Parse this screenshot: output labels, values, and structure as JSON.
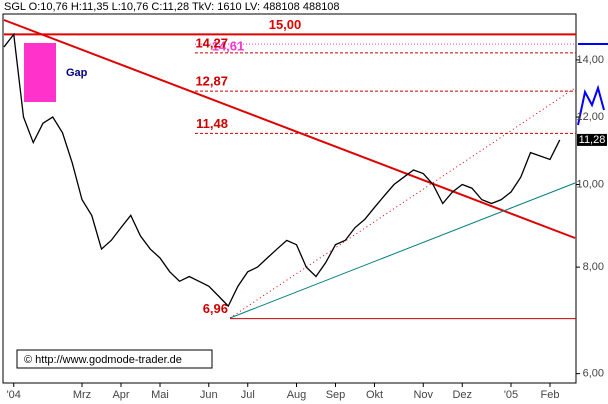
{
  "chart_data": {
    "type": "line",
    "header": "SGL O:10,76 H:11,35 L:10,76 C:11,28 TkV: 1610 LV: 488108 488108",
    "categories": [
      null,
      "'04",
      null,
      null,
      null,
      null,
      null,
      null,
      "Mrz",
      null,
      null,
      null,
      "Apr",
      null,
      null,
      null,
      "Mai",
      null,
      null,
      null,
      null,
      "Jun",
      null,
      null,
      null,
      "Jul",
      null,
      null,
      null,
      null,
      "Aug",
      null,
      null,
      null,
      "Sep",
      null,
      null,
      null,
      "Okt",
      null,
      null,
      null,
      null,
      "Nov",
      null,
      null,
      null,
      "Dez",
      null,
      null,
      null,
      null,
      "'05",
      null,
      null,
      null,
      "Feb",
      null
    ],
    "series": [
      {
        "color": "#000000",
        "values": [
          14.5,
          15.0,
          12.0,
          11.2,
          11.8,
          12.0,
          11.5,
          10.6,
          9.6,
          9.2,
          8.4,
          8.6,
          8.9,
          9.2,
          8.7,
          8.4,
          8.2,
          7.9,
          7.7,
          7.8,
          7.7,
          7.6,
          7.4,
          7.2,
          7.6,
          7.9,
          8.0,
          8.2,
          8.4,
          8.6,
          8.5,
          8.0,
          7.8,
          8.1,
          8.5,
          8.6,
          8.9,
          9.1,
          9.4,
          9.7,
          10.0,
          10.2,
          10.4,
          10.3,
          10.0,
          9.5,
          9.8,
          10.0,
          9.9,
          9.6,
          9.5,
          9.6,
          9.8,
          10.2,
          10.9,
          10.8,
          10.7,
          11.28
        ]
      }
    ],
    "log_scale": true,
    "ylim": [
      5.85,
      15.85
    ],
    "yticks": [
      {
        "value": 6,
        "label": "6,00"
      },
      {
        "value": 8,
        "label": "8,00"
      },
      {
        "value": 10,
        "label": "10,00"
      },
      {
        "value": 12,
        "label": "12,00"
      },
      {
        "value": 14,
        "label": "14,00"
      }
    ],
    "levels": [
      {
        "value": 15,
        "label": "15,00",
        "color": "#e00000"
      },
      {
        "value": 14.61,
        "label": "14,61",
        "color": "#ff33cc"
      },
      {
        "value": 14.27,
        "label": "14,27",
        "color": "#cc0000"
      },
      {
        "value": 12.87,
        "label": "12,87",
        "color": "#cc0000"
      },
      {
        "value": 11.48,
        "label": "11,48",
        "color": "#cc0000"
      },
      {
        "value": 6.96,
        "label": "6,96",
        "color": "#cc0000"
      }
    ],
    "last_price": {
      "value": 11.28,
      "label": "11,28"
    },
    "gap_label": "Gap",
    "copyright": "© http://www.godmode-trader.de"
  }
}
